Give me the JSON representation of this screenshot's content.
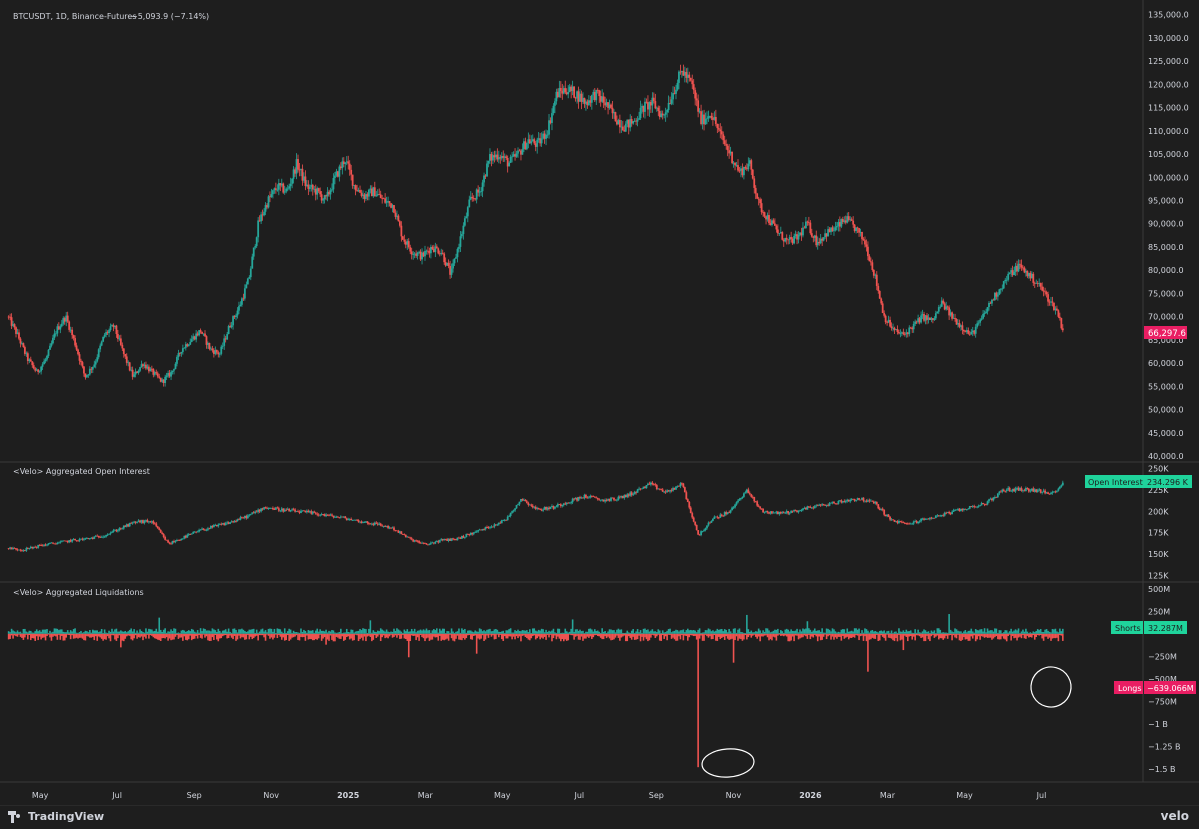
{
  "chart_data": [
    {
      "type": "candlestick",
      "title": "BTCUSDT, 1D, Binance-Futures",
      "change_text": "−5,093.9 (−7.14%)",
      "yticks": [
        40000,
        45000,
        50000,
        55000,
        60000,
        65000,
        70000,
        75000,
        80000,
        85000,
        90000,
        95000,
        100000,
        105000,
        110000,
        115000,
        120000,
        125000,
        130000,
        135000
      ],
      "ytick_labels": [
        "40,000.0",
        "45,000.0",
        "50,000.0",
        "55,000.0",
        "60,000.0",
        "65,000.0",
        "70,000.0",
        "75,000.0",
        "80,000.0",
        "85,000.0",
        "90,000.0",
        "95,000.0",
        "100,000.0",
        "105,000.0",
        "110,000.0",
        "115,000.0",
        "120,000.0",
        "125,000.0",
        "130,000.0",
        "135,000.0"
      ],
      "ylim": [
        40000,
        136000
      ],
      "last_price_label": "66,297.6",
      "last_price": 66297.6,
      "series": [
        {
          "name": "Close",
          "points": [
            [
              0,
              70000
            ],
            [
              0.3,
              66000
            ],
            [
              0.6,
              61000
            ],
            [
              0.9,
              58000
            ],
            [
              1.2,
              61000
            ],
            [
              1.5,
              67000
            ],
            [
              1.8,
              70000
            ],
            [
              2.1,
              64000
            ],
            [
              2.4,
              57000
            ],
            [
              2.7,
              60000
            ],
            [
              3.0,
              66000
            ],
            [
              3.3,
              68000
            ],
            [
              3.6,
              62000
            ],
            [
              3.9,
              57000
            ],
            [
              4.2,
              60000
            ],
            [
              4.5,
              58000
            ],
            [
              4.8,
              56000
            ],
            [
              5.1,
              58000
            ],
            [
              5.4,
              63000
            ],
            [
              5.7,
              65000
            ],
            [
              6.0,
              67000
            ],
            [
              6.3,
              63000
            ],
            [
              6.6,
              62000
            ],
            [
              6.9,
              68000
            ],
            [
              7.2,
              72000
            ],
            [
              7.5,
              78000
            ],
            [
              7.8,
              90000
            ],
            [
              8.1,
              95000
            ],
            [
              8.4,
              98000
            ],
            [
              8.7,
              97000
            ],
            [
              9.0,
              103000
            ],
            [
              9.3,
              98000
            ],
            [
              9.6,
              97000
            ],
            [
              9.9,
              95000
            ],
            [
              10.2,
              100000
            ],
            [
              10.5,
              104000
            ],
            [
              10.8,
              98000
            ],
            [
              11.1,
              96000
            ],
            [
              11.4,
              97000
            ],
            [
              11.7,
              95000
            ],
            [
              12.0,
              94000
            ],
            [
              12.3,
              87000
            ],
            [
              12.6,
              84000
            ],
            [
              12.9,
              83000
            ],
            [
              13.2,
              85000
            ],
            [
              13.5,
              84000
            ],
            [
              13.8,
              79000
            ],
            [
              14.1,
              87000
            ],
            [
              14.4,
              95000
            ],
            [
              14.7,
              97000
            ],
            [
              15.0,
              104000
            ],
            [
              15.3,
              105000
            ],
            [
              15.6,
              103000
            ],
            [
              15.9,
              105000
            ],
            [
              16.2,
              108000
            ],
            [
              16.5,
              107000
            ],
            [
              16.8,
              110000
            ],
            [
              17.1,
              118000
            ],
            [
              17.4,
              119000
            ],
            [
              17.7,
              118000
            ],
            [
              18.0,
              116000
            ],
            [
              18.3,
              118000
            ],
            [
              18.6,
              116000
            ],
            [
              18.9,
              113000
            ],
            [
              19.2,
              111000
            ],
            [
              19.5,
              112000
            ],
            [
              19.8,
              115000
            ],
            [
              20.1,
              116000
            ],
            [
              20.4,
              113000
            ],
            [
              20.7,
              118000
            ],
            [
              21.0,
              123000
            ],
            [
              21.3,
              120000
            ],
            [
              21.6,
              112000
            ],
            [
              21.9,
              114000
            ],
            [
              22.2,
              109000
            ],
            [
              22.5,
              105000
            ],
            [
              22.8,
              101000
            ],
            [
              23.1,
              103000
            ],
            [
              23.4,
              94000
            ],
            [
              23.7,
              91000
            ],
            [
              24.0,
              88000
            ],
            [
              24.3,
              86000
            ],
            [
              24.6,
              87000
            ],
            [
              24.9,
              90000
            ],
            [
              25.2,
              86000
            ],
            [
              25.5,
              88000
            ],
            [
              25.8,
              89000
            ],
            [
              26.1,
              91000
            ],
            [
              26.4,
              89000
            ],
            [
              26.7,
              86000
            ],
            [
              27.0,
              79000
            ],
            [
              27.3,
              70000
            ],
            [
              27.6,
              67000
            ],
            [
              27.9,
              66000
            ],
            [
              28.2,
              68000
            ],
            [
              28.5,
              70000
            ],
            [
              28.8,
              69000
            ],
            [
              29.1,
              73000
            ],
            [
              29.4,
              70000
            ],
            [
              29.7,
              68000
            ],
            [
              30.0,
              66000
            ],
            [
              30.3,
              69000
            ],
            [
              30.6,
              73000
            ],
            [
              30.9,
              76000
            ],
            [
              31.2,
              79000
            ],
            [
              31.5,
              81000
            ],
            [
              31.8,
              79000
            ],
            [
              32.1,
              77000
            ],
            [
              32.4,
              74000
            ],
            [
              32.7,
              71000
            ],
            [
              32.9,
              66297.6
            ]
          ]
        }
      ]
    },
    {
      "type": "line",
      "title": "<Velo> Aggregated Open Interest",
      "yticks": [
        125000,
        150000,
        175000,
        200000,
        225000,
        250000
      ],
      "ytick_labels": [
        "125K",
        "150K",
        "175K",
        "200K",
        "225K",
        "250K"
      ],
      "ylim": [
        122000,
        252000
      ],
      "badge_label": "Open Interest",
      "badge_value": "234.296 K",
      "series": [
        {
          "name": "Open Interest",
          "points": [
            [
              0,
              157000
            ],
            [
              0.5,
              155000
            ],
            [
              1.0,
              160000
            ],
            [
              1.5,
              163000
            ],
            [
              2.0,
              166000
            ],
            [
              2.5,
              168000
            ],
            [
              3.0,
              172000
            ],
            [
              3.5,
              180000
            ],
            [
              4.0,
              188000
            ],
            [
              4.5,
              188000
            ],
            [
              5.0,
              162000
            ],
            [
              5.5,
              170000
            ],
            [
              6.0,
              178000
            ],
            [
              6.5,
              183000
            ],
            [
              7.0,
              188000
            ],
            [
              7.5,
              195000
            ],
            [
              8.0,
              205000
            ],
            [
              8.5,
              202000
            ],
            [
              9.0,
              200000
            ],
            [
              9.5,
              198000
            ],
            [
              10.0,
              195000
            ],
            [
              10.5,
              192000
            ],
            [
              11.0,
              188000
            ],
            [
              11.5,
              185000
            ],
            [
              12.0,
              180000
            ],
            [
              12.5,
              168000
            ],
            [
              13.0,
              161000
            ],
            [
              13.5,
              166000
            ],
            [
              14.0,
              168000
            ],
            [
              14.5,
              175000
            ],
            [
              15.0,
              182000
            ],
            [
              15.5,
              190000
            ],
            [
              16.0,
              215000
            ],
            [
              16.5,
              202000
            ],
            [
              17.0,
              205000
            ],
            [
              17.5,
              212000
            ],
            [
              18.0,
              218000
            ],
            [
              18.5,
              213000
            ],
            [
              19.0,
              215000
            ],
            [
              19.5,
              222000
            ],
            [
              20.0,
              232000
            ],
            [
              20.5,
              222000
            ],
            [
              21.0,
              232000
            ],
            [
              21.5,
              172000
            ],
            [
              22.0,
              192000
            ],
            [
              22.5,
              200000
            ],
            [
              23.0,
              225000
            ],
            [
              23.5,
              200000
            ],
            [
              24.0,
              198000
            ],
            [
              24.5,
              200000
            ],
            [
              25.0,
              205000
            ],
            [
              25.5,
              208000
            ],
            [
              26.0,
              212000
            ],
            [
              26.5,
              215000
            ],
            [
              27.0,
              210000
            ],
            [
              27.5,
              190000
            ],
            [
              28.0,
              185000
            ],
            [
              28.5,
              190000
            ],
            [
              29.0,
              195000
            ],
            [
              29.5,
              200000
            ],
            [
              30.0,
              205000
            ],
            [
              30.5,
              210000
            ],
            [
              31.0,
              225000
            ],
            [
              31.5,
              226000
            ],
            [
              32.0,
              225000
            ],
            [
              32.5,
              220000
            ],
            [
              32.9,
              234296
            ]
          ]
        }
      ]
    },
    {
      "type": "bar",
      "title": "<Velo> Aggregated Liquidations",
      "yticks": [
        500000000,
        250000000,
        -250000000,
        -500000000,
        -750000000,
        -1000000000,
        -1250000000,
        -1500000000
      ],
      "ytick_labels": [
        "500M",
        "250M",
        "−250M",
        "−500M",
        "−750M",
        "−1 B",
        "−1.25 B",
        "−1.5 B"
      ],
      "ylim": [
        -1600000000,
        520000000
      ],
      "series": [
        {
          "name": "Shorts",
          "badge_value": "32.287M",
          "value": 32287000,
          "spikes": [
            [
              4.7,
              180000000
            ],
            [
              23.0,
              210000000
            ],
            [
              29.3,
              220000000
            ],
            [
              24.9,
              140000000
            ],
            [
              11.3,
              150000000
            ],
            [
              17.6,
              160000000
            ]
          ]
        },
        {
          "name": "Longs",
          "badge_value": "−639.066M",
          "value": -639066000,
          "spikes": [
            [
              21.5,
              -1480000000
            ],
            [
              32.9,
              -639066000
            ],
            [
              22.6,
              -320000000
            ],
            [
              26.8,
              -420000000
            ],
            [
              12.5,
              -260000000
            ],
            [
              14.6,
              -220000000
            ],
            [
              27.9,
              -180000000
            ],
            [
              3.5,
              -150000000
            ],
            [
              9.9,
              -120000000
            ]
          ]
        }
      ]
    }
  ],
  "x_axis": {
    "labels": [
      "May",
      "Jul",
      "Sep",
      "Nov",
      "2025",
      "Mar",
      "May",
      "Jul",
      "Sep",
      "Nov",
      "2026",
      "Mar",
      "May",
      "Jul"
    ]
  },
  "footer": {
    "logo_text": "TradingView",
    "brand_text": "velo"
  },
  "colors": {
    "up": "#26a69a",
    "down": "#ef5350",
    "up_bright": "#1fd39b",
    "down_bright": "#e91e63",
    "background": "#1e1e1e",
    "text": "#d1d4dc"
  }
}
